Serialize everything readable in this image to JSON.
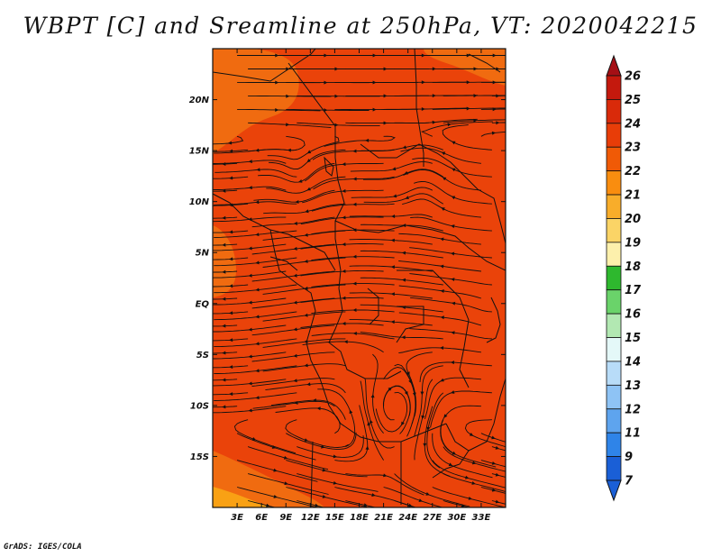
{
  "title": "WBPT [C] and Sreamline at 250hPa, VT: 2020042215",
  "credit": "GrADS: IGES/COLA",
  "map": {
    "lon_range": [
      0,
      36
    ],
    "lat_range": [
      -20,
      25
    ],
    "lat_ticks": [
      {
        "value": 20,
        "label": "20N"
      },
      {
        "value": 15,
        "label": "15N"
      },
      {
        "value": 10,
        "label": "10N"
      },
      {
        "value": 5,
        "label": "5N"
      },
      {
        "value": 0,
        "label": "EQ"
      },
      {
        "value": -5,
        "label": "5S"
      },
      {
        "value": -10,
        "label": "10S"
      },
      {
        "value": -15,
        "label": "15S"
      }
    ],
    "lon_ticks": [
      {
        "value": 3,
        "label": "3E"
      },
      {
        "value": 6,
        "label": "6E"
      },
      {
        "value": 9,
        "label": "9E"
      },
      {
        "value": 12,
        "label": "12E"
      },
      {
        "value": 15,
        "label": "15E"
      },
      {
        "value": 18,
        "label": "18E"
      },
      {
        "value": 21,
        "label": "21E"
      },
      {
        "value": 24,
        "label": "24E"
      },
      {
        "value": 27,
        "label": "27E"
      },
      {
        "value": 30,
        "label": "30E"
      },
      {
        "value": 33,
        "label": "33E"
      }
    ]
  },
  "colorbar": {
    "labels": [
      "26",
      "25",
      "24",
      "23",
      "22",
      "21",
      "20",
      "19",
      "18",
      "17",
      "16",
      "15",
      "14",
      "13",
      "12",
      "11",
      "9",
      "7"
    ],
    "colors": [
      "#a50f15",
      "#c4190d",
      "#d92a0a",
      "#e83d08",
      "#f05a06",
      "#f98d0f",
      "#f8ad2a",
      "#fbd466",
      "#fdf0ac",
      "#2eb82e",
      "#6ad36a",
      "#b2e8b2",
      "#e4f8f8",
      "#b8dcf8",
      "#8ec3f5",
      "#5ea4ee",
      "#2f84e8",
      "#1a5fd6"
    ],
    "top_color": "#a50f15",
    "bottom_color": "#1a5fd6"
  },
  "field_colors": {
    "dominant": "#ea430a",
    "warm_patch": "#f06b10",
    "hot_patch": "#f9a114"
  }
}
